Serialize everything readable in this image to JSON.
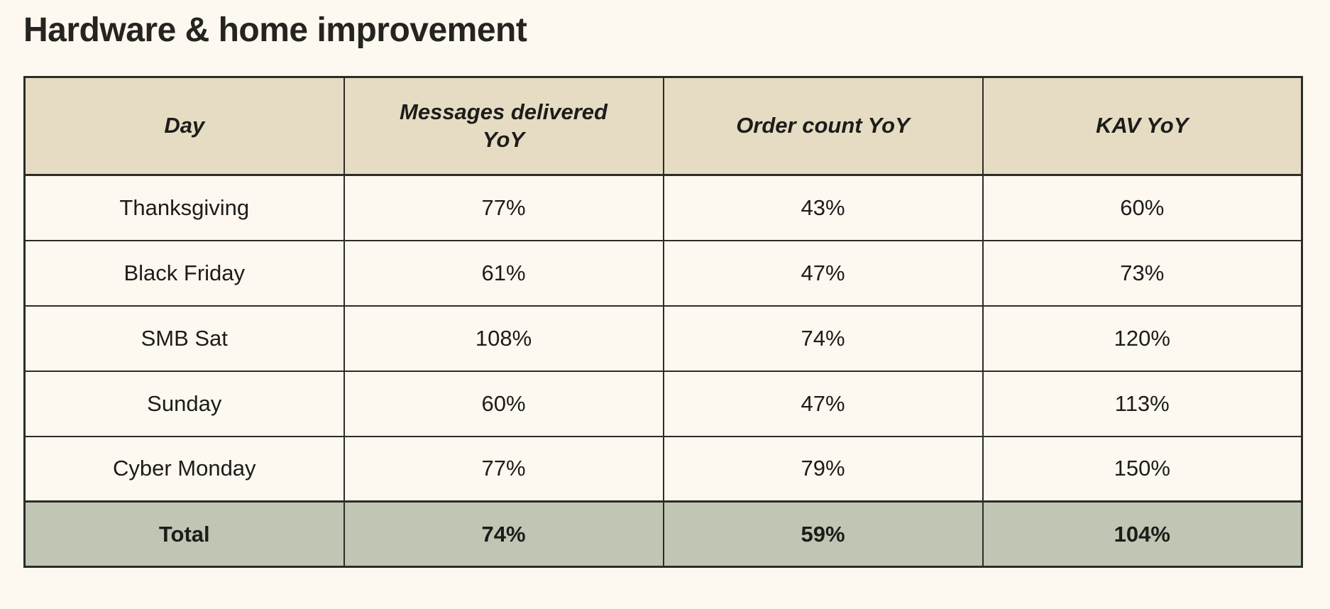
{
  "title": "Hardware & home improvement",
  "colors": {
    "page_bg": "#FDF9F0",
    "header_bg": "#E5DCC3",
    "total_row_bg": "#BFC6B3",
    "border": "#2E2C27",
    "text": "#1D1C1A"
  },
  "chart_data": {
    "type": "table",
    "title": "Hardware & home improvement",
    "columns": [
      "Day",
      "Messages delivered YoY",
      "Order count YoY",
      "KAV YoY"
    ],
    "rows": [
      [
        "Thanksgiving",
        "77%",
        "43%",
        "60%"
      ],
      [
        "Black Friday",
        "61%",
        "47%",
        "73%"
      ],
      [
        "SMB Sat",
        "108%",
        "74%",
        "120%"
      ],
      [
        "Sunday",
        "60%",
        "47%",
        "113%"
      ],
      [
        "Cyber Monday",
        "77%",
        "79%",
        "150%"
      ]
    ],
    "total_row": [
      "Total",
      "74%",
      "59%",
      "104%"
    ],
    "layout": {
      "header_style": "bold-italic",
      "total_style": "bold",
      "grid": "on",
      "column_count": 4,
      "equal_column_widths": true
    }
  }
}
